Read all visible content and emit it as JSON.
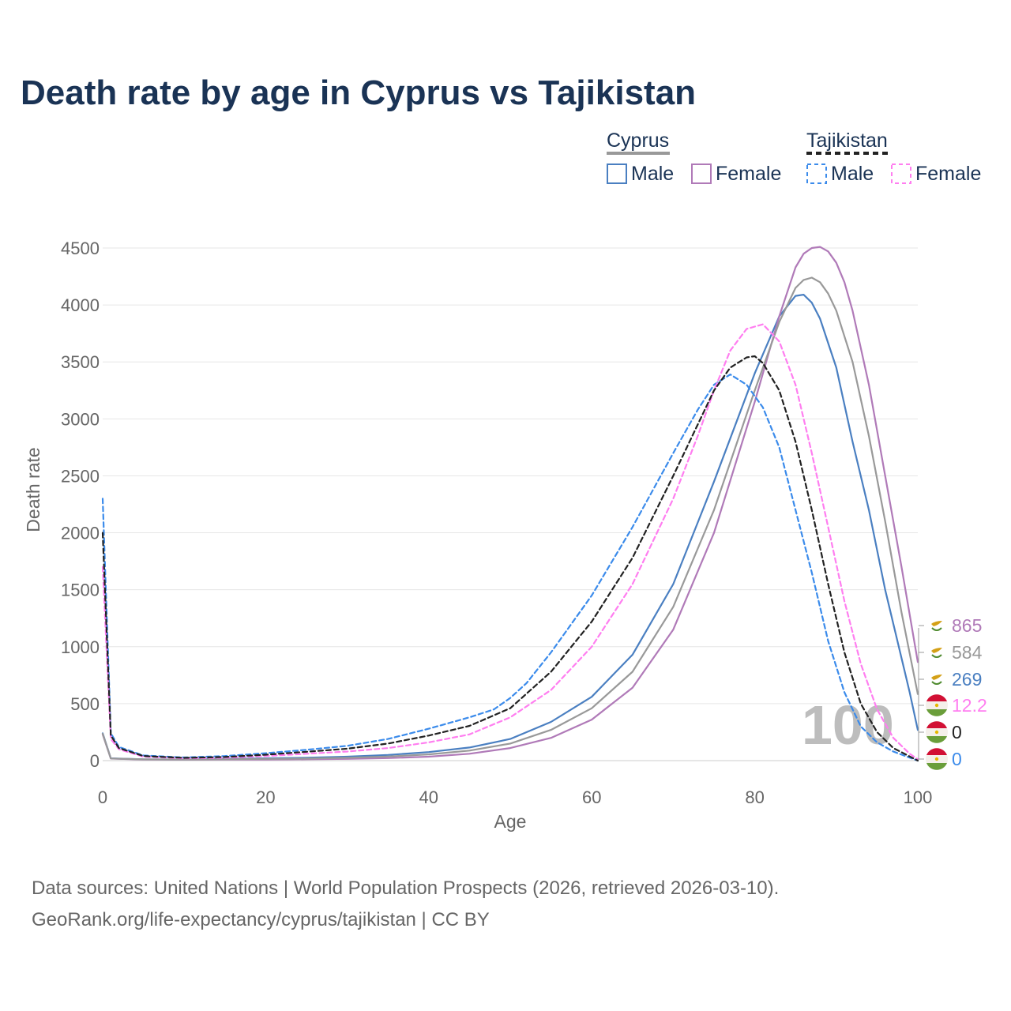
{
  "title": "Death rate by age in Cyprus vs Tajikistan",
  "legend": {
    "groups": [
      {
        "country": "Cyprus",
        "line_style": "solid",
        "line_color": "#999999",
        "items": [
          {
            "label": "Male",
            "color": "#4a7fc1"
          },
          {
            "label": "Female",
            "color": "#b07ab8"
          }
        ]
      },
      {
        "country": "Tajikistan",
        "line_style": "dashed",
        "line_color": "#222222",
        "items": [
          {
            "label": "Male",
            "color": "#3b8beb"
          },
          {
            "label": "Female",
            "color": "#ff7ef0"
          }
        ]
      }
    ]
  },
  "watermark": "100",
  "source_lines": [
    "Data sources: United Nations | World Population Prospects (2026, retrieved 2026-03-10).",
    "GeoRank.org/life-expectancy/cyprus/tajikistan | CC BY"
  ],
  "chart_data": {
    "type": "line",
    "title": "Death rate by age in Cyprus vs Tajikistan",
    "xlabel": "Age",
    "ylabel": "Death rate",
    "xlim": [
      0,
      100
    ],
    "ylim": [
      0,
      4500
    ],
    "xticks": [
      0,
      20,
      40,
      60,
      80,
      100
    ],
    "yticks": [
      0,
      500,
      1000,
      1500,
      2000,
      2500,
      3000,
      3500,
      4000,
      4500
    ],
    "grid": true,
    "series": [
      {
        "name": "Cyprus Male",
        "country": "Cyprus",
        "color": "#4a7fc1",
        "dash": false,
        "end_label": "269",
        "flag": "cyprus",
        "points": [
          [
            0,
            240
          ],
          [
            1,
            20
          ],
          [
            5,
            12
          ],
          [
            10,
            10
          ],
          [
            15,
            15
          ],
          [
            20,
            20
          ],
          [
            25,
            25
          ],
          [
            30,
            35
          ],
          [
            35,
            50
          ],
          [
            40,
            75
          ],
          [
            45,
            115
          ],
          [
            50,
            190
          ],
          [
            55,
            340
          ],
          [
            60,
            560
          ],
          [
            65,
            930
          ],
          [
            70,
            1550
          ],
          [
            75,
            2450
          ],
          [
            80,
            3400
          ],
          [
            83,
            3900
          ],
          [
            85,
            4080
          ],
          [
            86,
            4090
          ],
          [
            87,
            4020
          ],
          [
            88,
            3880
          ],
          [
            90,
            3450
          ],
          [
            92,
            2800
          ],
          [
            94,
            2200
          ],
          [
            96,
            1500
          ],
          [
            98,
            900
          ],
          [
            99,
            600
          ],
          [
            100,
            269
          ]
        ]
      },
      {
        "name": "Cyprus Female",
        "country": "Cyprus",
        "color": "#b07ab8",
        "dash": false,
        "end_label": "865",
        "flag": "cyprus",
        "points": [
          [
            0,
            230
          ],
          [
            1,
            18
          ],
          [
            5,
            10
          ],
          [
            10,
            8
          ],
          [
            15,
            9
          ],
          [
            20,
            10
          ],
          [
            25,
            12
          ],
          [
            30,
            15
          ],
          [
            35,
            22
          ],
          [
            40,
            35
          ],
          [
            45,
            60
          ],
          [
            50,
            110
          ],
          [
            55,
            200
          ],
          [
            60,
            360
          ],
          [
            65,
            640
          ],
          [
            70,
            1150
          ],
          [
            75,
            2000
          ],
          [
            80,
            3150
          ],
          [
            83,
            3900
          ],
          [
            85,
            4330
          ],
          [
            86,
            4450
          ],
          [
            87,
            4500
          ],
          [
            88,
            4510
          ],
          [
            89,
            4470
          ],
          [
            90,
            4370
          ],
          [
            91,
            4200
          ],
          [
            92,
            3950
          ],
          [
            94,
            3300
          ],
          [
            96,
            2500
          ],
          [
            98,
            1700
          ],
          [
            100,
            865
          ]
        ]
      },
      {
        "name": "Cyprus Both",
        "country": "Cyprus",
        "color": "#999999",
        "dash": false,
        "end_label": "584",
        "flag": "cyprus",
        "points": [
          [
            0,
            235
          ],
          [
            1,
            19
          ],
          [
            5,
            11
          ],
          [
            10,
            9
          ],
          [
            15,
            12
          ],
          [
            20,
            15
          ],
          [
            25,
            18
          ],
          [
            30,
            25
          ],
          [
            35,
            36
          ],
          [
            40,
            55
          ],
          [
            45,
            88
          ],
          [
            50,
            150
          ],
          [
            55,
            270
          ],
          [
            60,
            460
          ],
          [
            65,
            780
          ],
          [
            70,
            1350
          ],
          [
            75,
            2200
          ],
          [
            80,
            3250
          ],
          [
            83,
            3850
          ],
          [
            85,
            4150
          ],
          [
            86,
            4220
          ],
          [
            87,
            4240
          ],
          [
            88,
            4200
          ],
          [
            89,
            4100
          ],
          [
            90,
            3950
          ],
          [
            92,
            3500
          ],
          [
            94,
            2850
          ],
          [
            96,
            2100
          ],
          [
            98,
            1300
          ],
          [
            100,
            584
          ]
        ]
      },
      {
        "name": "Tajikistan Male",
        "country": "Tajikistan",
        "color": "#3b8beb",
        "dash": true,
        "end_label": "0",
        "flag": "tajikistan",
        "points": [
          [
            0,
            2300
          ],
          [
            1,
            240
          ],
          [
            2,
            120
          ],
          [
            5,
            45
          ],
          [
            10,
            28
          ],
          [
            15,
            40
          ],
          [
            20,
            65
          ],
          [
            25,
            95
          ],
          [
            30,
            130
          ],
          [
            35,
            190
          ],
          [
            40,
            280
          ],
          [
            45,
            380
          ],
          [
            48,
            450
          ],
          [
            50,
            550
          ],
          [
            52,
            680
          ],
          [
            55,
            950
          ],
          [
            60,
            1450
          ],
          [
            65,
            2050
          ],
          [
            70,
            2700
          ],
          [
            73,
            3080
          ],
          [
            75,
            3300
          ],
          [
            77,
            3390
          ],
          [
            79,
            3300
          ],
          [
            81,
            3100
          ],
          [
            83,
            2750
          ],
          [
            85,
            2200
          ],
          [
            87,
            1650
          ],
          [
            89,
            1050
          ],
          [
            91,
            600
          ],
          [
            93,
            300
          ],
          [
            95,
            160
          ],
          [
            97,
            80
          ],
          [
            100,
            0
          ]
        ]
      },
      {
        "name": "Tajikistan Female",
        "country": "Tajikistan",
        "color": "#ff7ef0",
        "dash": true,
        "end_label": "12.2",
        "flag": "tajikistan",
        "points": [
          [
            0,
            1700
          ],
          [
            1,
            190
          ],
          [
            2,
            100
          ],
          [
            5,
            35
          ],
          [
            10,
            20
          ],
          [
            15,
            25
          ],
          [
            20,
            40
          ],
          [
            25,
            60
          ],
          [
            30,
            80
          ],
          [
            35,
            110
          ],
          [
            40,
            160
          ],
          [
            45,
            230
          ],
          [
            50,
            380
          ],
          [
            55,
            620
          ],
          [
            60,
            1000
          ],
          [
            65,
            1550
          ],
          [
            70,
            2300
          ],
          [
            73,
            2850
          ],
          [
            75,
            3250
          ],
          [
            77,
            3600
          ],
          [
            79,
            3790
          ],
          [
            81,
            3830
          ],
          [
            83,
            3680
          ],
          [
            85,
            3300
          ],
          [
            87,
            2700
          ],
          [
            89,
            2050
          ],
          [
            91,
            1400
          ],
          [
            93,
            850
          ],
          [
            95,
            450
          ],
          [
            97,
            200
          ],
          [
            99,
            60
          ],
          [
            100,
            12.2
          ]
        ]
      },
      {
        "name": "Tajikistan Both",
        "country": "Tajikistan",
        "color": "#222222",
        "dash": true,
        "end_label": "0",
        "flag": "tajikistan",
        "points": [
          [
            0,
            2000
          ],
          [
            1,
            220
          ],
          [
            2,
            110
          ],
          [
            5,
            40
          ],
          [
            10,
            24
          ],
          [
            15,
            32
          ],
          [
            20,
            52
          ],
          [
            25,
            78
          ],
          [
            30,
            105
          ],
          [
            35,
            150
          ],
          [
            40,
            220
          ],
          [
            45,
            305
          ],
          [
            50,
            460
          ],
          [
            55,
            780
          ],
          [
            60,
            1220
          ],
          [
            65,
            1780
          ],
          [
            70,
            2500
          ],
          [
            73,
            2950
          ],
          [
            75,
            3250
          ],
          [
            77,
            3450
          ],
          [
            79,
            3540
          ],
          [
            80,
            3550
          ],
          [
            81,
            3490
          ],
          [
            83,
            3250
          ],
          [
            85,
            2800
          ],
          [
            87,
            2200
          ],
          [
            89,
            1550
          ],
          [
            91,
            950
          ],
          [
            93,
            500
          ],
          [
            95,
            250
          ],
          [
            97,
            110
          ],
          [
            100,
            0
          ]
        ]
      }
    ]
  }
}
